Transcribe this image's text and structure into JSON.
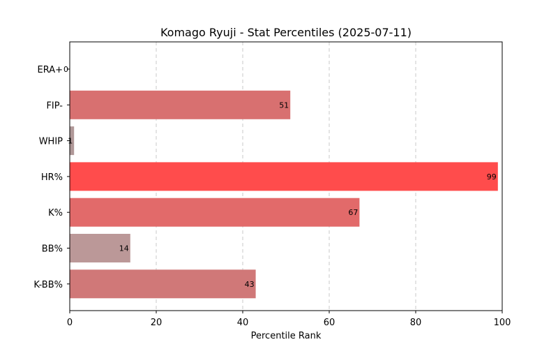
{
  "chart_data": {
    "type": "bar",
    "orientation": "horizontal",
    "title": "Komago Ryuji - Stat Percentiles (2025-07-11)",
    "xlabel": "Percentile Rank",
    "ylabel": "",
    "xlim": [
      0,
      100
    ],
    "xticks": [
      0,
      20,
      40,
      60,
      80,
      100
    ],
    "grid": "x-dashed",
    "categories": [
      "ERA+",
      "FIP-",
      "WHIP",
      "HR%",
      "K%",
      "BB%",
      "K-BB%"
    ],
    "values": [
      0,
      51,
      1,
      99,
      67,
      14,
      43
    ],
    "value_labels": [
      "0",
      "51",
      "1",
      "99",
      "67",
      "14",
      "43"
    ],
    "colors": [
      "#b0a0a0",
      "#d87070",
      "#b09898",
      "#ff4c4c",
      "#e26a6a",
      "#bb9898",
      "#d07878"
    ]
  }
}
